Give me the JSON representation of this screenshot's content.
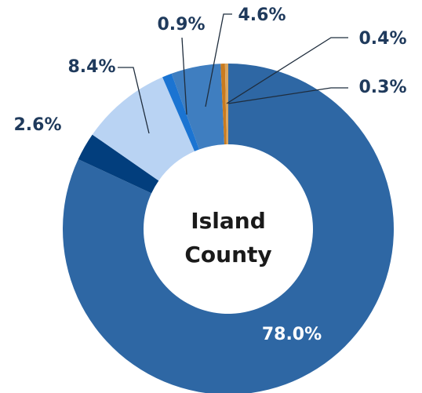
{
  "chart_data": {
    "type": "pie",
    "donut": true,
    "center_label": [
      "Island",
      "County"
    ],
    "values": [
      78.0,
      2.6,
      8.4,
      0.9,
      4.6,
      0.4,
      0.3
    ],
    "value_labels": [
      "78.0%",
      "2.6%",
      "8.4%",
      "0.9%",
      "4.6%",
      "0.4%",
      "0.3%"
    ],
    "colors": [
      "#2e67a4",
      "#023e7d",
      "#b9d3f3",
      "#1b74d2",
      "#3f7ec0",
      "#c97b1f",
      "#d9a55f"
    ]
  }
}
